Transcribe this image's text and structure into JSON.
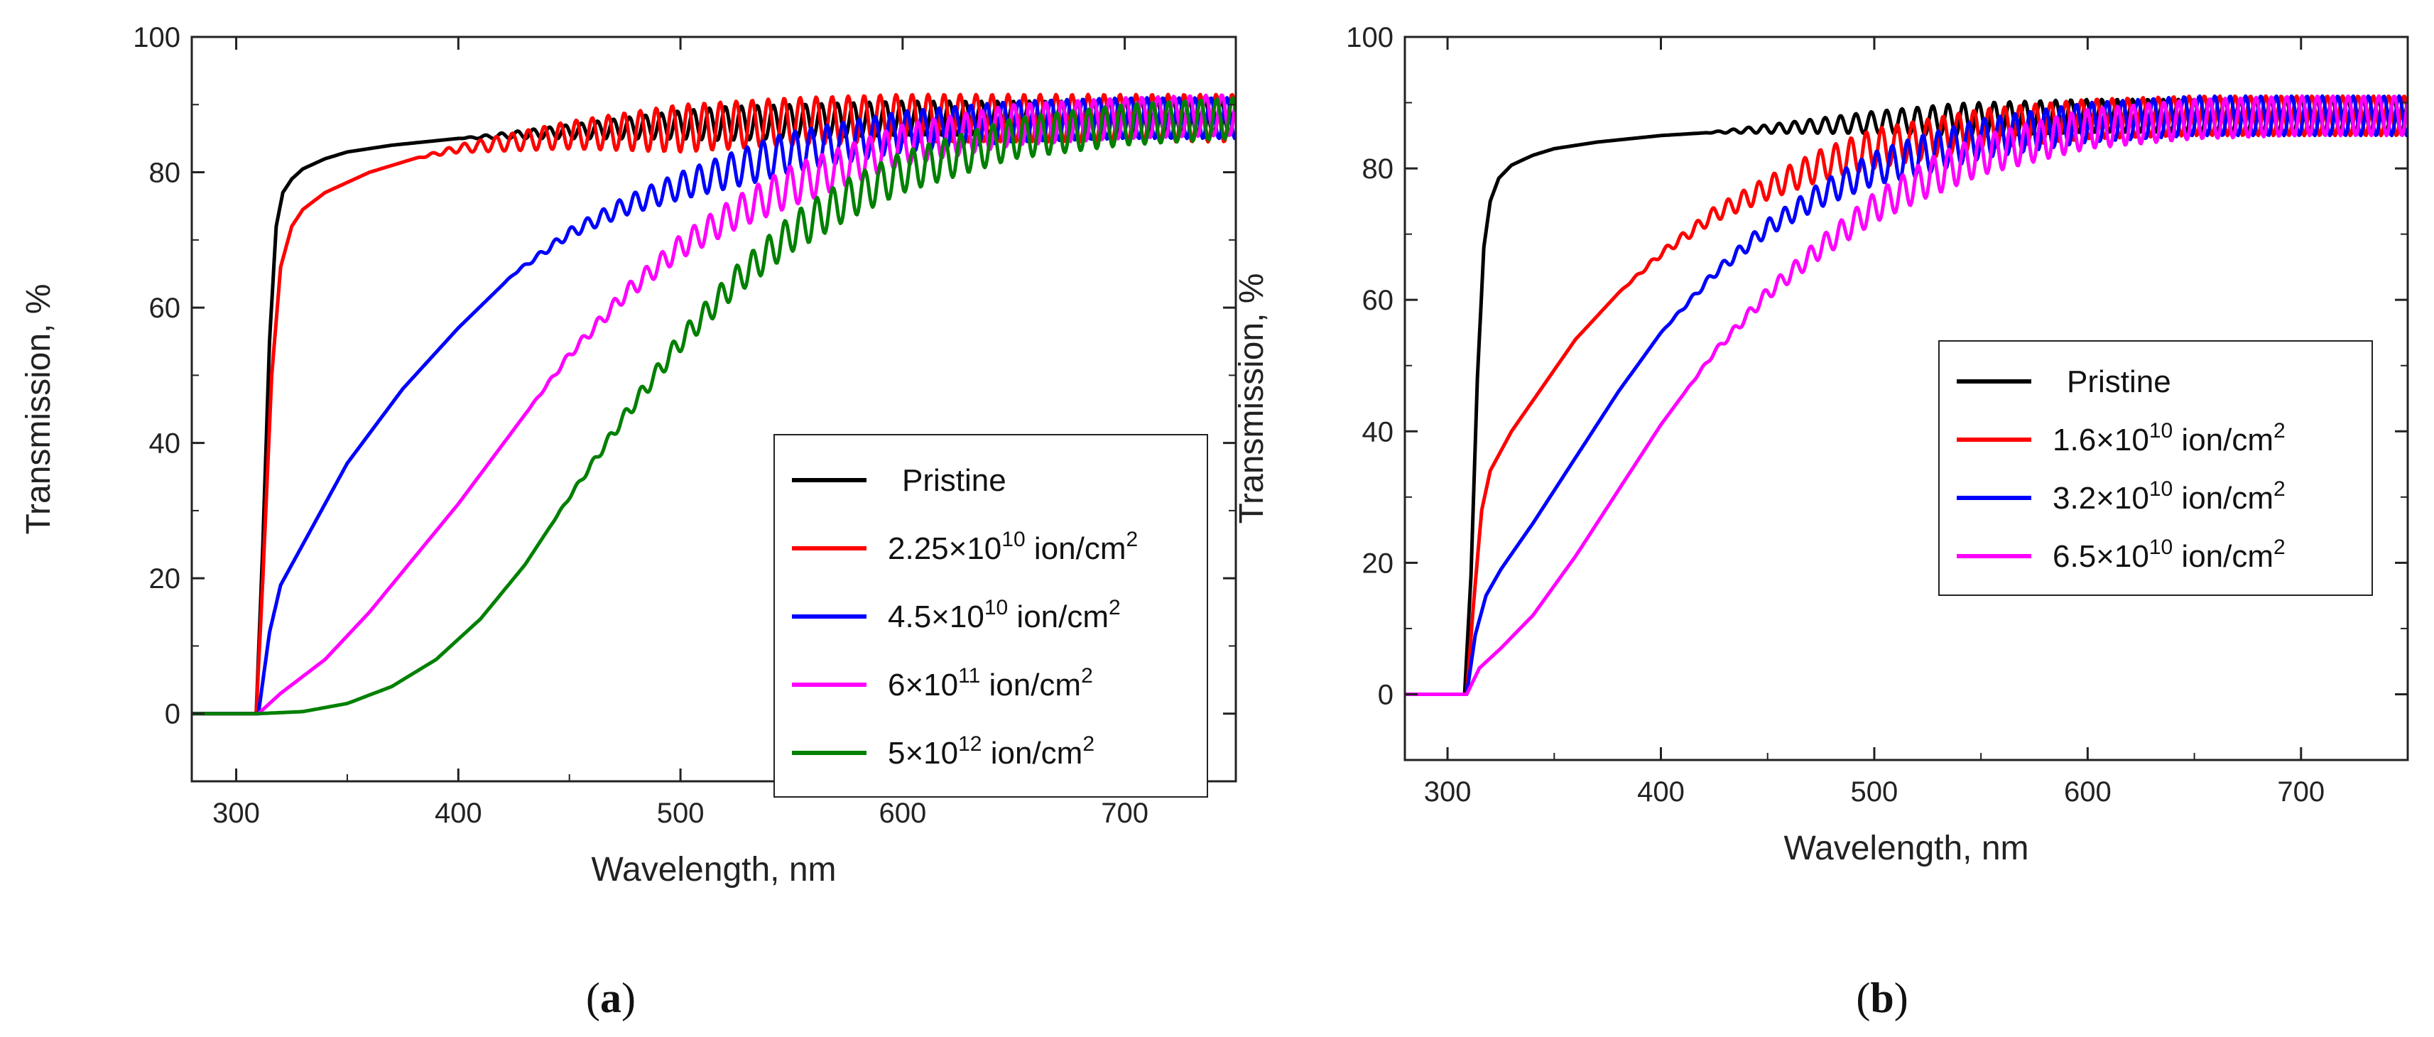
{
  "chart_data": [
    {
      "type": "line",
      "panel_label": "(a)",
      "xlabel": "Wavelength, nm",
      "ylabel": "Transmission, %",
      "xlim": [
        280,
        750
      ],
      "ylim": [
        -10,
        100
      ],
      "x_ticks": [
        300,
        400,
        500,
        600,
        700
      ],
      "y_ticks": [
        0,
        20,
        40,
        60,
        80,
        100
      ],
      "grid": false,
      "legend_position": "center-right",
      "series": [
        {
          "name": "Pristine",
          "label_main": "Pristine",
          "label_exp": "",
          "label_unit": "",
          "color": "#000000",
          "x": [
            280,
            305,
            309,
            312,
            315,
            318,
            321,
            325,
            330,
            340,
            350,
            370,
            400,
            450,
            500,
            550,
            600,
            650,
            700,
            750
          ],
          "y": [
            0,
            0,
            0,
            25,
            55,
            72,
            77,
            79,
            80.5,
            82,
            83,
            84,
            85,
            86,
            87,
            87.5,
            88,
            88,
            88,
            88
          ],
          "fringe_amp": 2.5,
          "fringe_start": 400
        },
        {
          "name": "2.25×10^10 ion/cm^2",
          "label_main": "2.25×10",
          "label_exp": "10",
          "label_unit": " ion/cm",
          "color": "#ff0000",
          "x": [
            280,
            305,
            309,
            312,
            316,
            320,
            325,
            330,
            340,
            360,
            380,
            400,
            450,
            500,
            550,
            600,
            650,
            700,
            750
          ],
          "y": [
            0,
            0,
            0,
            20,
            50,
            66,
            72,
            74.5,
            77,
            80,
            82,
            83.5,
            85.5,
            86.5,
            87.5,
            88,
            88,
            88,
            88
          ],
          "fringe_amp": 3.5,
          "fringe_start": 380
        },
        {
          "name": "4.5×10^10 ion/cm^2",
          "label_main": "4.5×10",
          "label_exp": "10",
          "label_unit": " ion/cm",
          "color": "#0000ff",
          "x": [
            280,
            305,
            310,
            315,
            320,
            330,
            350,
            375,
            400,
            425,
            450,
            475,
            500,
            550,
            600,
            650,
            700,
            750
          ],
          "y": [
            0,
            0,
            0,
            12,
            19,
            25,
            37,
            48,
            57,
            65,
            71,
            75,
            78,
            83,
            86,
            87.5,
            88,
            88
          ],
          "fringe_amp": 3,
          "fringe_start": 420
        },
        {
          "name": "6×10^11 ion/cm^2",
          "label_main": "6×10",
          "label_exp": "11",
          "label_unit": " ion/cm",
          "color": "#ff00ff",
          "x": [
            280,
            305,
            310,
            320,
            340,
            360,
            380,
            400,
            425,
            450,
            475,
            500,
            525,
            550,
            600,
            650,
            700,
            750
          ],
          "y": [
            0,
            0,
            0,
            3,
            8,
            15,
            23,
            31,
            42,
            53,
            62,
            69,
            74,
            78,
            84,
            87,
            88,
            88.5
          ],
          "fringe_amp": 3,
          "fringe_start": 430
        },
        {
          "name": "5×10^12 ion/cm^2",
          "label_main": "5×10",
          "label_exp": "12",
          "label_unit": " ion/cm",
          "color": "#008000",
          "x": [
            280,
            310,
            330,
            350,
            370,
            390,
            410,
            430,
            450,
            475,
            500,
            525,
            550,
            575,
            600,
            650,
            700,
            750
          ],
          "y": [
            0,
            0,
            0.3,
            1.5,
            4,
            8,
            14,
            22,
            32,
            44,
            55,
            64,
            71,
            76,
            80,
            85,
            87,
            88
          ],
          "fringe_amp": 3,
          "fringe_start": 440
        }
      ]
    },
    {
      "type": "line",
      "panel_label": "(b)",
      "xlabel": "Wavelength, nm",
      "ylabel": "Transmission, %",
      "xlim": [
        280,
        750
      ],
      "ylim": [
        -10,
        100
      ],
      "x_ticks": [
        300,
        400,
        500,
        600,
        700
      ],
      "y_ticks": [
        0,
        20,
        40,
        60,
        80,
        100
      ],
      "grid": false,
      "legend_position": "center-right",
      "series": [
        {
          "name": "Pristine",
          "label_main": "Pristine",
          "label_exp": "",
          "label_unit": "",
          "color": "#000000",
          "x": [
            280,
            305,
            308,
            311,
            314,
            317,
            320,
            324,
            330,
            340,
            350,
            370,
            400,
            450,
            500,
            550,
            600,
            650,
            700,
            750
          ],
          "y": [
            0,
            0,
            0,
            18,
            48,
            68,
            75,
            78.5,
            80.5,
            82,
            83,
            84,
            85,
            86,
            87,
            87.5,
            88,
            88,
            88,
            88
          ],
          "fringe_amp": 2.5,
          "fringe_start": 420
        },
        {
          "name": "1.6×10^10 ion/cm^2",
          "label_main": "1.6×10",
          "label_exp": "10",
          "label_unit": " ion/cm",
          "color": "#ff0000",
          "x": [
            280,
            305,
            309,
            312,
            316,
            320,
            330,
            345,
            360,
            380,
            400,
            425,
            450,
            475,
            500,
            550,
            600,
            650,
            700,
            750
          ],
          "y": [
            0,
            0,
            0,
            13,
            28,
            34,
            40,
            47,
            54,
            61,
            67,
            73,
            77,
            80.5,
            83,
            86,
            87.5,
            88,
            88,
            88
          ],
          "fringe_amp": 3,
          "fringe_start": 380
        },
        {
          "name": "3.2×10^10 ion/cm^2",
          "label_main": "3.2×10",
          "label_exp": "10",
          "label_unit": " ion/cm",
          "color": "#0000ff",
          "x": [
            280,
            305,
            309,
            313,
            318,
            325,
            340,
            360,
            380,
            400,
            425,
            450,
            475,
            500,
            550,
            600,
            650,
            700,
            750
          ],
          "y": [
            0,
            0,
            0,
            9,
            15,
            19,
            26,
            36,
            46,
            55,
            64,
            71,
            76,
            80,
            84.5,
            87,
            88,
            88,
            88
          ],
          "fringe_amp": 3,
          "fringe_start": 400
        },
        {
          "name": "6.5×10^10 ion/cm^2",
          "label_main": "6.5×10",
          "label_exp": "10",
          "label_unit": " ion/cm",
          "color": "#ff00ff",
          "x": [
            280,
            305,
            309,
            315,
            325,
            340,
            360,
            380,
            400,
            425,
            450,
            475,
            500,
            525,
            550,
            600,
            650,
            700,
            750
          ],
          "y": [
            0,
            0,
            0,
            4,
            7,
            12,
            21,
            31,
            41,
            52,
            61,
            68,
            74,
            78.5,
            82,
            86,
            87.5,
            88,
            88
          ],
          "fringe_amp": 3,
          "fringe_start": 410
        }
      ]
    }
  ]
}
